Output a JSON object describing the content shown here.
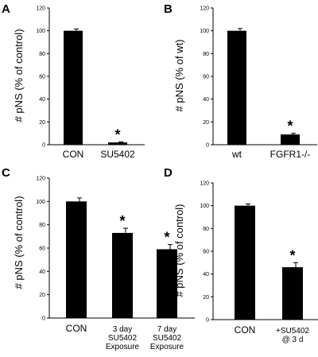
{
  "chart_data": [
    {
      "panel": "A",
      "type": "bar",
      "ylabel": "# pNS  (% of control)",
      "ylim": [
        0,
        120
      ],
      "yticks": [
        0,
        20,
        40,
        60,
        80,
        100,
        120
      ],
      "categories": [
        [
          "CON"
        ],
        [
          "SU5402"
        ]
      ],
      "values": [
        100,
        2
      ],
      "errors": [
        1.5,
        0.5
      ],
      "significant": [
        false,
        true
      ],
      "sig_marker": "*"
    },
    {
      "panel": "B",
      "type": "bar",
      "ylabel": "# pNS  (% of wt)",
      "ylim": [
        0,
        120
      ],
      "yticks": [
        0,
        20,
        40,
        60,
        80,
        100,
        120
      ],
      "categories": [
        [
          "wt"
        ],
        [
          "FGFR1-/-"
        ]
      ],
      "values": [
        100,
        9
      ],
      "errors": [
        2,
        1
      ],
      "significant": [
        false,
        true
      ],
      "sig_marker": "*"
    },
    {
      "panel": "C",
      "type": "bar",
      "ylabel": "# pNS  (% of control)",
      "ylim": [
        0,
        120
      ],
      "yticks": [
        0,
        20,
        40,
        60,
        80,
        100,
        120
      ],
      "categories": [
        [
          "CON"
        ],
        [
          "3 day",
          "SU5402",
          "Exposure"
        ],
        [
          "7 day",
          "SU5402",
          "Exposure"
        ]
      ],
      "values": [
        100,
        73,
        59
      ],
      "errors": [
        3,
        4,
        4
      ],
      "significant": [
        false,
        true,
        true
      ],
      "sig_marker": "*"
    },
    {
      "panel": "D",
      "type": "bar",
      "ylabel": "# pNS  (% of control)",
      "ylim": [
        0,
        120
      ],
      "yticks": [
        0,
        20,
        40,
        60,
        80,
        100,
        120
      ],
      "categories": [
        [
          "CON"
        ],
        [
          "+SU5402",
          "@ 3 d"
        ]
      ],
      "values": [
        100,
        46
      ],
      "errors": [
        1.5,
        4
      ],
      "significant": [
        false,
        true
      ],
      "sig_marker": "*"
    }
  ]
}
